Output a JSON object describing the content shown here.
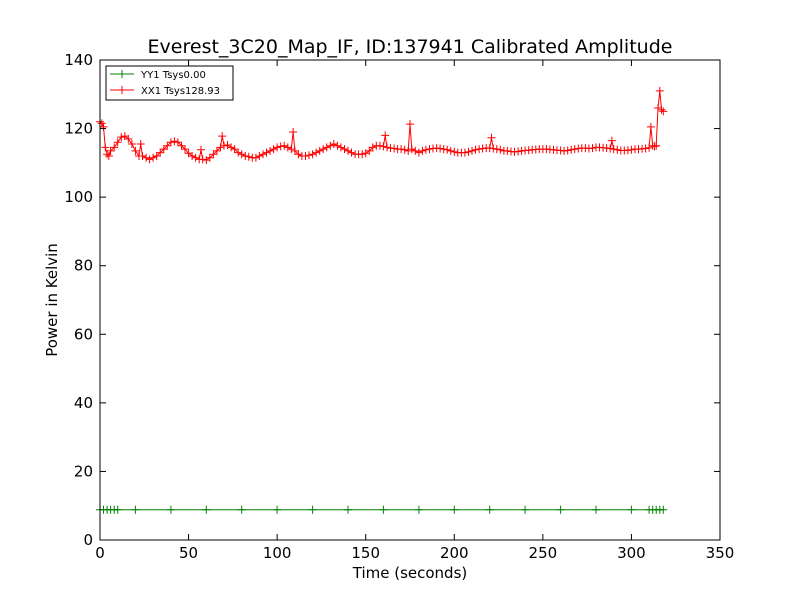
{
  "chart_data": {
    "type": "line",
    "title": "Everest_3C20_Map_IF, ID:137941 Calibrated Amplitude",
    "xlabel": "Time (seconds)",
    "ylabel": "Power in Kelvin",
    "xlim": [
      0,
      350
    ],
    "ylim": [
      0,
      140
    ],
    "xticks": [
      "0",
      "50",
      "100",
      "150",
      "200",
      "250",
      "300",
      "350"
    ],
    "yticks": [
      "0",
      "20",
      "40",
      "60",
      "80",
      "100",
      "120",
      "140"
    ],
    "legend_position": "top-left",
    "grid": false,
    "series": [
      {
        "name": "YY1 Tsys0.00",
        "color": "#008000",
        "marker": "plus",
        "points": [
          [
            0,
            8.8
          ],
          [
            2,
            8.8
          ],
          [
            4,
            8.8
          ],
          [
            6,
            8.8
          ],
          [
            8,
            8.8
          ],
          [
            10,
            8.8
          ],
          [
            20,
            8.8
          ],
          [
            40,
            8.8
          ],
          [
            60,
            8.8
          ],
          [
            80,
            8.8
          ],
          [
            100,
            8.8
          ],
          [
            120,
            8.8
          ],
          [
            140,
            8.8
          ],
          [
            160,
            8.8
          ],
          [
            180,
            8.8
          ],
          [
            200,
            8.8
          ],
          [
            220,
            8.8
          ],
          [
            240,
            8.8
          ],
          [
            260,
            8.8
          ],
          [
            280,
            8.8
          ],
          [
            300,
            8.8
          ],
          [
            310,
            8.8
          ],
          [
            312,
            8.8
          ],
          [
            314,
            8.8
          ],
          [
            316,
            8.8
          ],
          [
            318,
            8.8
          ]
        ]
      },
      {
        "name": "XX1 Tsys128.93",
        "color": "#ff0000",
        "marker": "plus",
        "points": [
          [
            0,
            122
          ],
          [
            1,
            121.5
          ],
          [
            2,
            120.5
          ],
          [
            3,
            114.5
          ],
          [
            4,
            112.5
          ],
          [
            5,
            112
          ],
          [
            6,
            113.5
          ],
          [
            8,
            114.5
          ],
          [
            10,
            116
          ],
          [
            12,
            117.5
          ],
          [
            14,
            117.8
          ],
          [
            16,
            117
          ],
          [
            18,
            115.5
          ],
          [
            20,
            113.5
          ],
          [
            22,
            112
          ],
          [
            23,
            115.5
          ],
          [
            24,
            112
          ],
          [
            26,
            111.5
          ],
          [
            28,
            111
          ],
          [
            30,
            111.5
          ],
          [
            32,
            112
          ],
          [
            34,
            113
          ],
          [
            36,
            114
          ],
          [
            38,
            115
          ],
          [
            40,
            116
          ],
          [
            42,
            116.3
          ],
          [
            44,
            116
          ],
          [
            46,
            115
          ],
          [
            48,
            114
          ],
          [
            50,
            112.8
          ],
          [
            52,
            112
          ],
          [
            54,
            111.5
          ],
          [
            56,
            111
          ],
          [
            57,
            113.8
          ],
          [
            58,
            111
          ],
          [
            60,
            110.8
          ],
          [
            62,
            111.5
          ],
          [
            64,
            112.5
          ],
          [
            66,
            113.5
          ],
          [
            68,
            114.5
          ],
          [
            69,
            117.8
          ],
          [
            70,
            115
          ],
          [
            72,
            115.2
          ],
          [
            74,
            114.5
          ],
          [
            76,
            114
          ],
          [
            78,
            113
          ],
          [
            80,
            112.5
          ],
          [
            82,
            112
          ],
          [
            84,
            111.8
          ],
          [
            86,
            111.5
          ],
          [
            88,
            111.5
          ],
          [
            90,
            112
          ],
          [
            92,
            112.5
          ],
          [
            94,
            113
          ],
          [
            96,
            113.5
          ],
          [
            98,
            114
          ],
          [
            100,
            114.5
          ],
          [
            102,
            114.8
          ],
          [
            104,
            115
          ],
          [
            106,
            114.5
          ],
          [
            108,
            114
          ],
          [
            109,
            119
          ],
          [
            110,
            113.5
          ],
          [
            112,
            112.5
          ],
          [
            114,
            112
          ],
          [
            116,
            112
          ],
          [
            118,
            112.2
          ],
          [
            120,
            112.5
          ],
          [
            122,
            113
          ],
          [
            124,
            113.5
          ],
          [
            126,
            114
          ],
          [
            128,
            114.5
          ],
          [
            130,
            115
          ],
          [
            132,
            115.5
          ],
          [
            134,
            115
          ],
          [
            136,
            114.5
          ],
          [
            138,
            114
          ],
          [
            140,
            113.5
          ],
          [
            142,
            113
          ],
          [
            144,
            112.5
          ],
          [
            146,
            112.5
          ],
          [
            148,
            112.5
          ],
          [
            150,
            112.8
          ],
          [
            152,
            113.5
          ],
          [
            154,
            114.5
          ],
          [
            156,
            115
          ],
          [
            158,
            115
          ],
          [
            160,
            114.8
          ],
          [
            161,
            118
          ],
          [
            162,
            114.5
          ],
          [
            164,
            114.3
          ],
          [
            166,
            114.2
          ],
          [
            168,
            114
          ],
          [
            170,
            114
          ],
          [
            172,
            113.8
          ],
          [
            174,
            113.5
          ],
          [
            175,
            121.3
          ],
          [
            176,
            114
          ],
          [
            178,
            113.5
          ],
          [
            180,
            113
          ],
          [
            182,
            113.5
          ],
          [
            184,
            113.8
          ],
          [
            186,
            114
          ],
          [
            188,
            114.2
          ],
          [
            190,
            114.3
          ],
          [
            192,
            114.2
          ],
          [
            194,
            114
          ],
          [
            196,
            113.8
          ],
          [
            198,
            113.5
          ],
          [
            200,
            113.2
          ],
          [
            202,
            113
          ],
          [
            204,
            113
          ],
          [
            206,
            113
          ],
          [
            208,
            113.2
          ],
          [
            210,
            113.5
          ],
          [
            212,
            113.8
          ],
          [
            214,
            114
          ],
          [
            216,
            114.2
          ],
          [
            218,
            114.3
          ],
          [
            220,
            114.3
          ],
          [
            221,
            117.3
          ],
          [
            222,
            114.2
          ],
          [
            224,
            114
          ],
          [
            226,
            113.8
          ],
          [
            228,
            113.5
          ],
          [
            230,
            113.5
          ],
          [
            232,
            113.3
          ],
          [
            234,
            113.2
          ],
          [
            236,
            113.3
          ],
          [
            238,
            113.5
          ],
          [
            240,
            113.6
          ],
          [
            242,
            113.7
          ],
          [
            244,
            113.8
          ],
          [
            246,
            113.9
          ],
          [
            248,
            114
          ],
          [
            250,
            114
          ],
          [
            252,
            114
          ],
          [
            254,
            113.9
          ],
          [
            256,
            113.8
          ],
          [
            258,
            113.7
          ],
          [
            260,
            113.6
          ],
          [
            262,
            113.5
          ],
          [
            264,
            113.6
          ],
          [
            266,
            113.8
          ],
          [
            268,
            114
          ],
          [
            270,
            114.2
          ],
          [
            272,
            114.3
          ],
          [
            274,
            114.3
          ],
          [
            276,
            114.2
          ],
          [
            278,
            114.3
          ],
          [
            280,
            114.5
          ],
          [
            282,
            114.5
          ],
          [
            284,
            114.4
          ],
          [
            286,
            114.3
          ],
          [
            288,
            114.2
          ],
          [
            289,
            116.5
          ],
          [
            290,
            114
          ],
          [
            292,
            113.8
          ],
          [
            294,
            113.6
          ],
          [
            296,
            113.6
          ],
          [
            298,
            113.7
          ],
          [
            300,
            113.8
          ],
          [
            302,
            114
          ],
          [
            304,
            114
          ],
          [
            306,
            114.1
          ],
          [
            308,
            114.2
          ],
          [
            310,
            114.4
          ],
          [
            311,
            120.5
          ],
          [
            312,
            115
          ],
          [
            313,
            114.8
          ],
          [
            314,
            115
          ],
          [
            315,
            126
          ],
          [
            316,
            131
          ],
          [
            317,
            125.5
          ],
          [
            318,
            125
          ]
        ]
      }
    ]
  }
}
